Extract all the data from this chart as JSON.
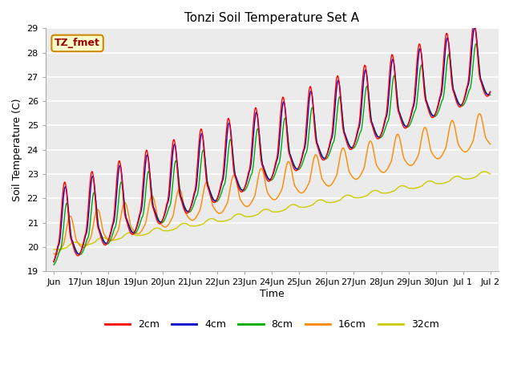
{
  "title": "Tonzi Soil Temperature Set A",
  "xlabel": "Time",
  "ylabel": "Soil Temperature (C)",
  "ylim": [
    19.0,
    29.0
  ],
  "yticks": [
    19.0,
    20.0,
    21.0,
    22.0,
    23.0,
    24.0,
    25.0,
    26.0,
    27.0,
    28.0,
    29.0
  ],
  "bg_color": "#ebebeb",
  "grid_color": "#ffffff",
  "annotation_text": "TZ_fmet",
  "annotation_bg": "#ffffcc",
  "annotation_border": "#cc0000",
  "line_colors": {
    "2cm": "#ff0000",
    "4cm": "#0000cc",
    "8cm": "#00aa00",
    "16cm": "#ff8800",
    "32cm": "#cccc00"
  },
  "legend_labels": [
    "2cm",
    "4cm",
    "8cm",
    "16cm",
    "32cm"
  ],
  "xtick_positions": [
    0,
    1,
    2,
    3,
    4,
    5,
    6,
    7,
    8,
    9,
    10,
    11,
    12,
    13,
    14,
    15,
    16
  ],
  "xtick_labels": [
    "Jun",
    "17Jun",
    "18Jun",
    "19Jun",
    "20Jun",
    "21Jun",
    "22Jun",
    "23Jun",
    "24Jun",
    "25Jun",
    "26Jun",
    "27Jun",
    "28Jun",
    "29Jun",
    "30Jun",
    "Jul 1",
    "Jul 2"
  ]
}
